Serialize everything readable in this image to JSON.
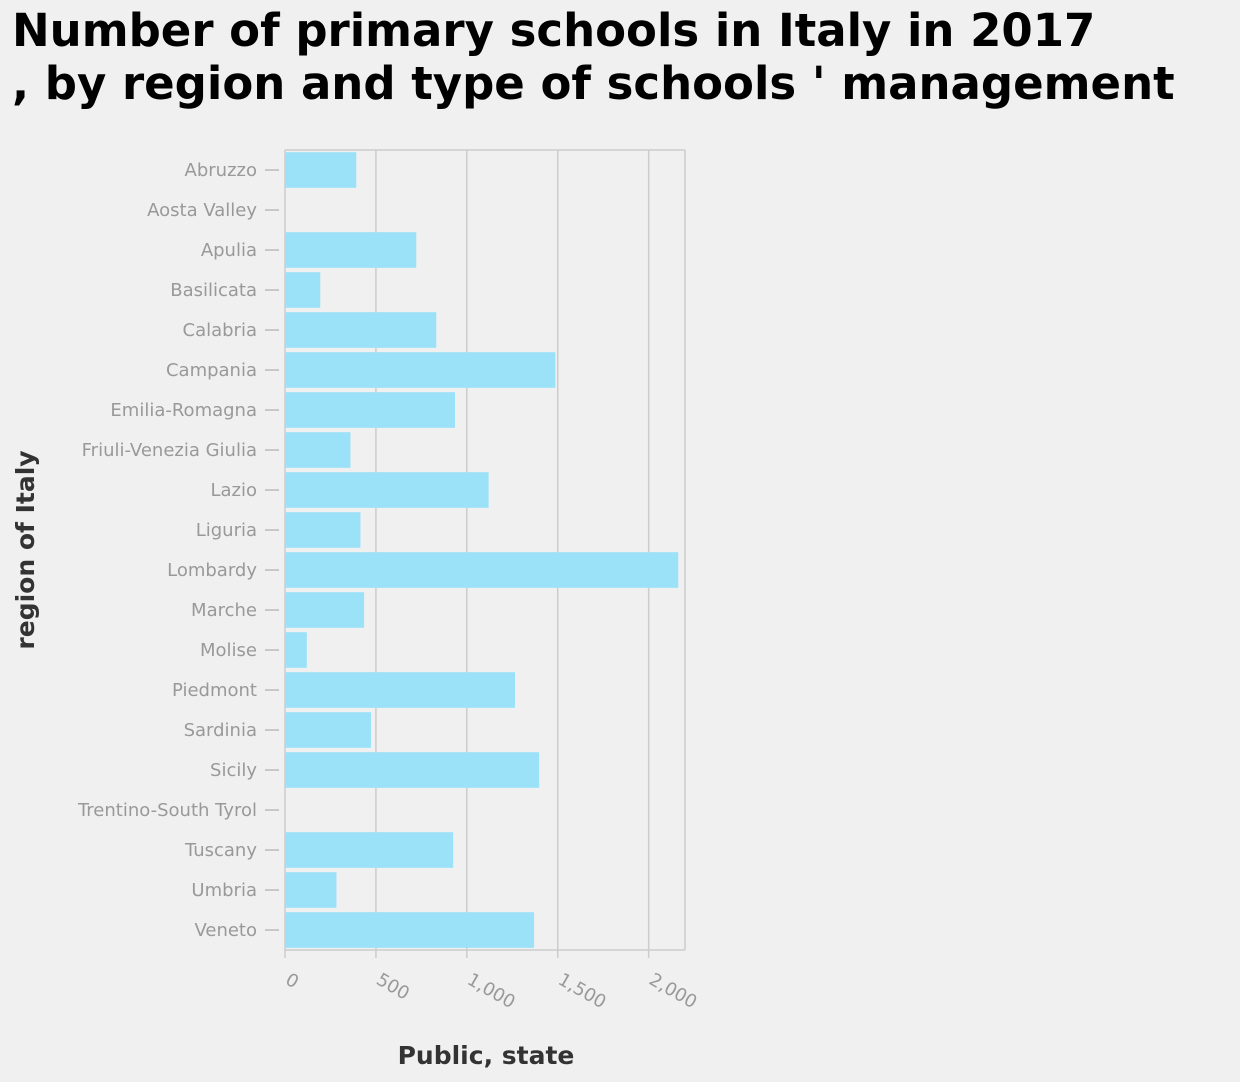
{
  "chart_data": {
    "type": "bar",
    "orientation": "horizontal",
    "title": "Number of primary schools in Italy in 2017\n, by region and type of schools ' management",
    "xlabel": "Public, state",
    "ylabel": "region of Italy",
    "xlim": [
      0,
      2200
    ],
    "xticks": [
      0,
      500,
      1000,
      1500,
      2000
    ],
    "xtick_labels": [
      "0",
      "500",
      "1,000",
      "1,500",
      "2,000"
    ],
    "grid": "vertical",
    "bar_color": "#9be2f9",
    "categories": [
      "Abruzzo",
      "Aosta Valley",
      "Apulia",
      "Basilicata",
      "Calabria",
      "Campania",
      "Emilia-Romagna",
      "Friuli-Venezia Giulia",
      "Lazio",
      "Liguria",
      "Lombardy",
      "Marche",
      "Molise",
      "Piedmont",
      "Sardinia",
      "Sicily",
      "Trentino-South Tyrol",
      "Tuscany",
      "Umbria",
      "Veneto"
    ],
    "values": [
      392,
      0,
      722,
      194,
      832,
      1487,
      935,
      360,
      1120,
      415,
      2163,
      435,
      120,
      1265,
      473,
      1398,
      0,
      925,
      283,
      1370
    ]
  }
}
